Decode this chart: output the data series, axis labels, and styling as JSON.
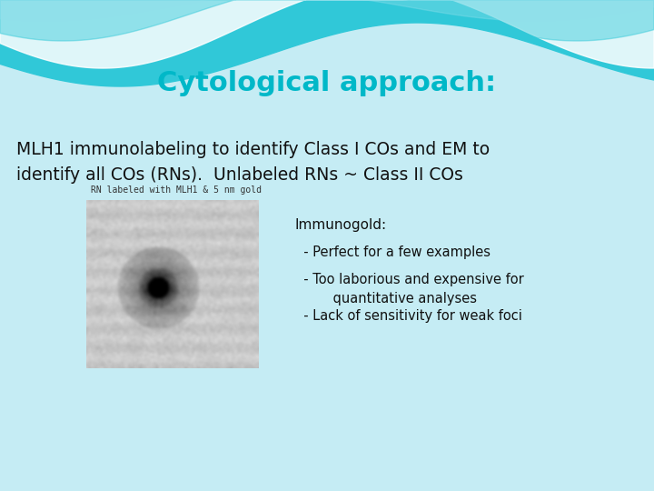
{
  "title": "Cytological approach:",
  "title_color": "#00B8C8",
  "title_fontsize": 22,
  "title_fontstyle": "bold",
  "bg_color": "#C5ECF4",
  "wave_color_teal": "#30C8D8",
  "wave_color_white": "#FFFFFF",
  "wave_color_light": "#8DDDE8",
  "body_text_line1": "MLH1 immunolabeling to identify Class I COs and EM to",
  "body_text_line2": "identify all COs (RNs).  Unlabeled RNs ~ Class II COs",
  "body_fontsize": 13.5,
  "body_color": "#111111",
  "img_caption": "RN labeled with MLH1 & 5 nm gold",
  "img_caption_fontsize": 7,
  "bullet_title": "Immunogold:",
  "bullet_title_fontsize": 11,
  "bullets": [
    "  - Perfect for a few examples",
    "  - Too laborious and expensive for\n         quantitative analyses",
    "  - Lack of sensitivity for weak foci"
  ],
  "bullet_fontsize": 10.5,
  "bullet_color": "#111111"
}
